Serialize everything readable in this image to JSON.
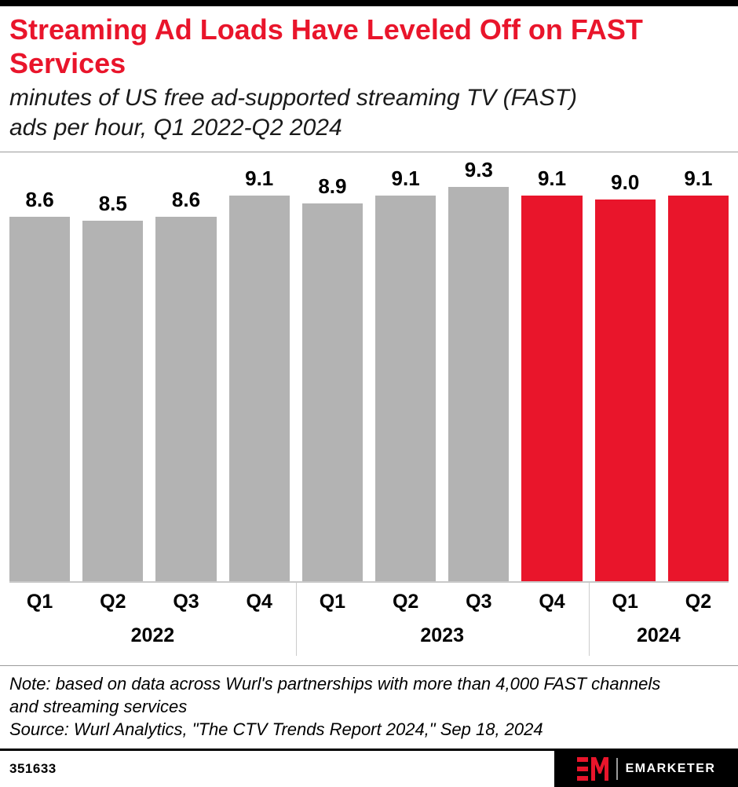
{
  "header": {
    "title_lines": [
      "Streaming Ad Loads Have Leveled Off on FAST",
      "Services"
    ],
    "subtitle_lines": [
      "minutes of US free ad-supported streaming TV (FAST)",
      "ads per hour, Q1 2022-Q2 2024"
    ]
  },
  "chart_data": {
    "type": "bar",
    "title": "Streaming Ad Loads Have Leveled Off on FAST Services",
    "subtitle": "minutes of US free ad-supported streaming TV (FAST) ads per hour, Q1 2022-Q2 2024",
    "categories": [
      "Q1",
      "Q2",
      "Q3",
      "Q4",
      "Q1",
      "Q2",
      "Q3",
      "Q4",
      "Q1",
      "Q2"
    ],
    "values": [
      8.6,
      8.5,
      8.6,
      9.1,
      8.9,
      9.1,
      9.3,
      9.1,
      9.0,
      9.1
    ],
    "value_labels": [
      "8.6",
      "8.5",
      "8.6",
      "9.1",
      "8.9",
      "9.1",
      "9.3",
      "9.1",
      "9.0",
      "9.1"
    ],
    "bar_colors": [
      "#b3b3b3",
      "#b3b3b3",
      "#b3b3b3",
      "#b3b3b3",
      "#b3b3b3",
      "#b3b3b3",
      "#b3b3b3",
      "#e9152b",
      "#e9152b",
      "#e9152b"
    ],
    "year_groups": [
      {
        "label": "2022",
        "count": 4
      },
      {
        "label": "2023",
        "count": 4
      },
      {
        "label": "2024",
        "count": 2
      }
    ],
    "ylabel": "",
    "xlabel": "",
    "ylim": [
      0,
      10
    ],
    "grid": false,
    "legend": "none"
  },
  "footnote": {
    "note_lines": [
      "Note: based on data across Wurl's partnerships with more than 4,000 FAST channels",
      "and streaming services"
    ],
    "source": "Source: Wurl Analytics, \"The CTV Trends Report 2024,\" Sep 18, 2024"
  },
  "footer": {
    "chart_id": "351633",
    "brand": "EMARKETER"
  },
  "colors": {
    "accent_red": "#e9152b",
    "bar_gray": "#b3b3b3",
    "divider_gray": "#9b9b9b"
  }
}
